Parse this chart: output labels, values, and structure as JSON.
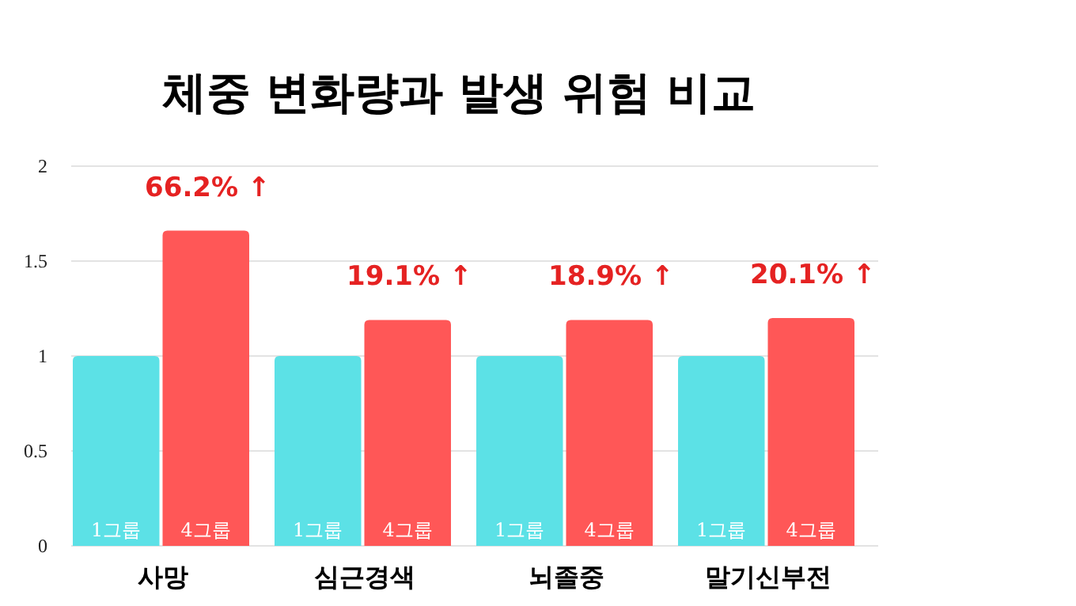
{
  "chart_data": {
    "type": "bar",
    "title": "체중 변화량과 발생 위험 비교",
    "categories": [
      "사망",
      "심근경색",
      "뇌졸중",
      "말기신부전"
    ],
    "series": [
      {
        "name": "1그룹",
        "color": "#5ce1e6",
        "values": [
          1,
          1,
          1,
          1
        ]
      },
      {
        "name": "4그룹",
        "color": "#ff5757",
        "values": [
          1.66,
          1.19,
          1.19,
          1.2
        ]
      }
    ],
    "ylim": [
      0,
      2
    ],
    "yticks": [
      0,
      0.5,
      1,
      1.5,
      2
    ],
    "grid": "y",
    "annotations": [
      {
        "text": "66.2% ↑",
        "x": "사망",
        "y": 1.66
      },
      {
        "text": "19.1% ↑",
        "x": "심근경색",
        "y": 1.19
      },
      {
        "text": "18.9% ↑",
        "x": "뇌졸중",
        "y": 1.19
      },
      {
        "text": "20.1% ↑",
        "x": "말기신부전",
        "y": 1.2
      }
    ]
  }
}
